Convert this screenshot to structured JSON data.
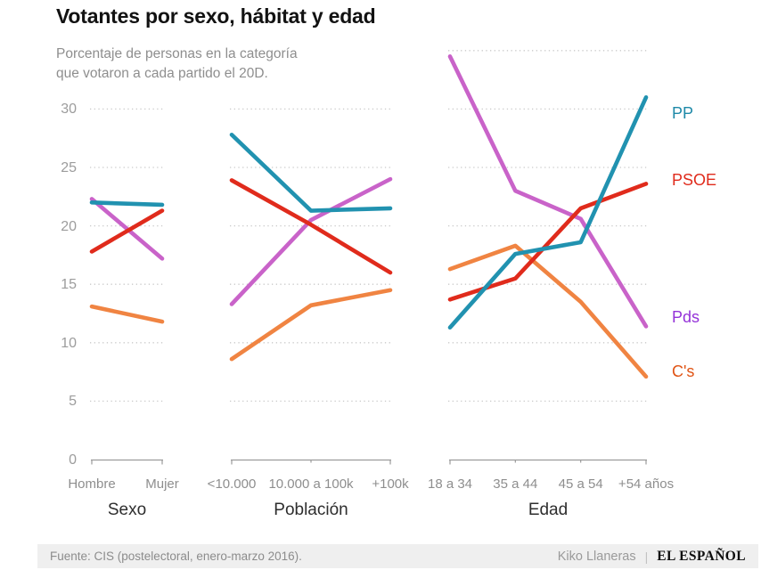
{
  "header": {
    "title": "Votantes por sexo, hábitat y edad",
    "subtitle_line1": "Porcentaje de personas en la categoría",
    "subtitle_line2": "que votaron a cada partido el 20D."
  },
  "chart_data": {
    "type": "line",
    "title": "Votantes por sexo, hábitat y edad",
    "subtitle": "Porcentaje de personas en la categoría que votaron a cada partido el 20D.",
    "ylim": [
      0,
      35
    ],
    "yticks": [
      30,
      25,
      20,
      15,
      10,
      5,
      0
    ],
    "grid": "dotted-horizontal",
    "legend_position": "right",
    "series_colors": {
      "PP": "#2192b0",
      "PSOE": "#e02b1c",
      "Pds": "#c963c9",
      "C's": "#f08442"
    },
    "legend": [
      {
        "label": "PP",
        "color": "#1e89a8"
      },
      {
        "label": "PSOE",
        "color": "#e02b1c"
      },
      {
        "label": "Pds",
        "color": "#9432d8"
      },
      {
        "label": "C's",
        "color": "#e05415"
      }
    ],
    "panels": [
      {
        "label": "Sexo",
        "categories": [
          "Hombre",
          "Mujer"
        ],
        "series": [
          {
            "name": "PP",
            "values": [
              22.0,
              21.8
            ]
          },
          {
            "name": "PSOE",
            "values": [
              17.8,
              21.3
            ]
          },
          {
            "name": "Pds",
            "values": [
              22.3,
              17.2
            ]
          },
          {
            "name": "C's",
            "values": [
              13.1,
              11.8
            ]
          }
        ]
      },
      {
        "label": "Población",
        "categories": [
          "<10.000",
          "10.000 a 100k",
          "+100k"
        ],
        "series": [
          {
            "name": "PP",
            "values": [
              27.8,
              21.3,
              21.5
            ]
          },
          {
            "name": "PSOE",
            "values": [
              23.9,
              20.1,
              16.0
            ]
          },
          {
            "name": "Pds",
            "values": [
              13.3,
              20.5,
              24.0
            ]
          },
          {
            "name": "C's",
            "values": [
              8.6,
              13.2,
              14.5
            ]
          }
        ]
      },
      {
        "label": "Edad",
        "categories": [
          "18 a 34",
          "35 a 44",
          "45 a 54",
          "+54 años"
        ],
        "series": [
          {
            "name": "PP",
            "values": [
              11.3,
              17.6,
              18.6,
              31.0
            ]
          },
          {
            "name": "PSOE",
            "values": [
              13.7,
              15.5,
              21.5,
              23.6
            ]
          },
          {
            "name": "Pds",
            "values": [
              34.5,
              23.0,
              20.6,
              11.4
            ]
          },
          {
            "name": "C's",
            "values": [
              16.3,
              18.3,
              13.5,
              7.1
            ]
          }
        ]
      }
    ]
  },
  "footer": {
    "source": "Fuente: CIS (postelectoral, enero-marzo 2016).",
    "credit": "Kiko Llaneras",
    "separator": "|",
    "brand": "EL ESPAÑOL"
  }
}
